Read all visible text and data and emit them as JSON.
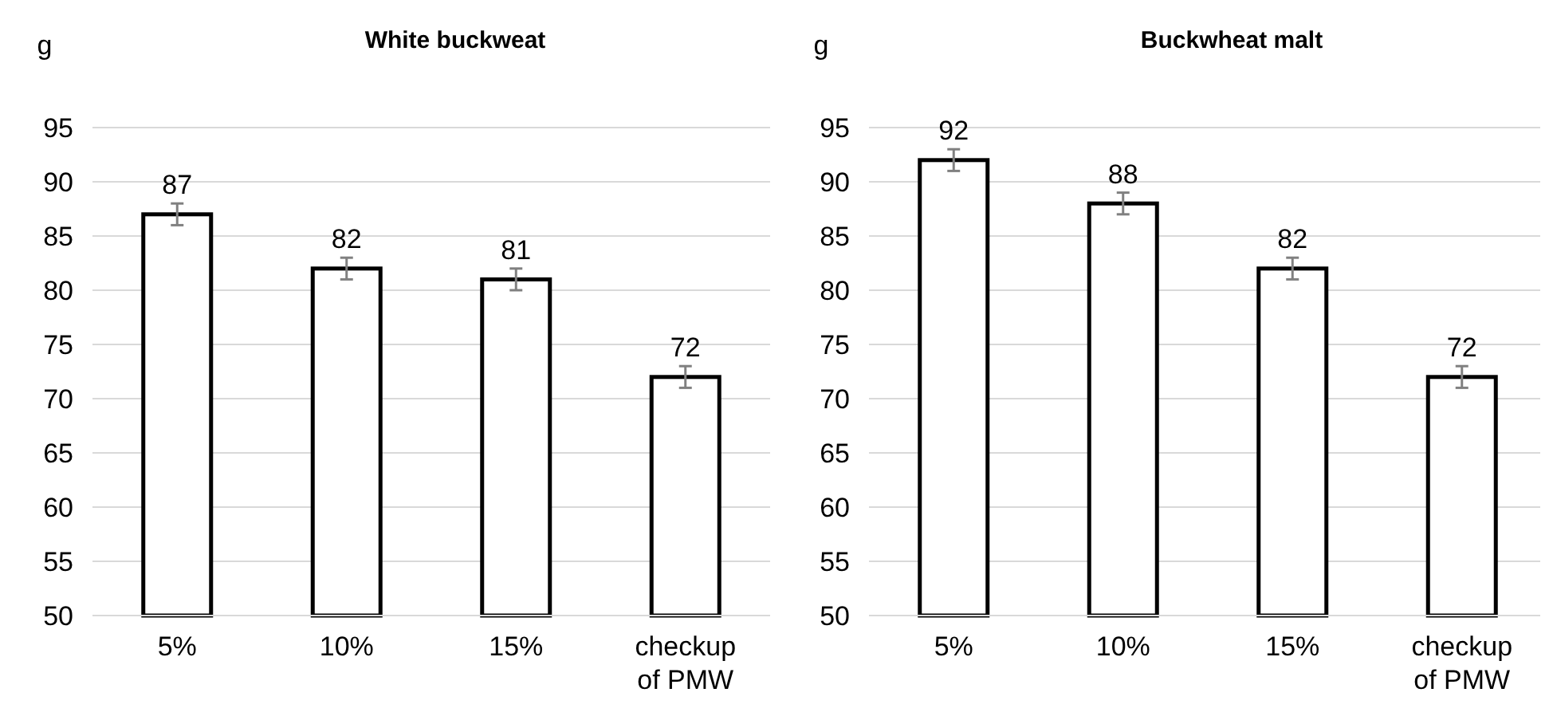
{
  "chart_data": [
    {
      "type": "bar",
      "title": "White buckweat",
      "ylabel": "g",
      "categories": [
        "5%",
        "10%",
        "15%",
        "checkup of PMW"
      ],
      "values": [
        87,
        82,
        81,
        72
      ],
      "errors": [
        1,
        1,
        1,
        1
      ],
      "color": "#ffffff",
      "ylim": [
        50,
        95
      ],
      "yticks": [
        50,
        55,
        60,
        65,
        70,
        75,
        80,
        85,
        90,
        95
      ],
      "grid": "y",
      "data_labels": true
    },
    {
      "type": "bar",
      "title": "Buckwheat malt",
      "ylabel": "g",
      "categories": [
        "5%",
        "10%",
        "15%",
        "checkup of PMW"
      ],
      "values": [
        92,
        88,
        82,
        72
      ],
      "errors": [
        1,
        1,
        1,
        1
      ],
      "color": "#ffffff",
      "ylim": [
        50,
        95
      ],
      "yticks": [
        50,
        55,
        60,
        65,
        70,
        75,
        80,
        85,
        90,
        95
      ],
      "grid": "y",
      "data_labels": true
    }
  ]
}
